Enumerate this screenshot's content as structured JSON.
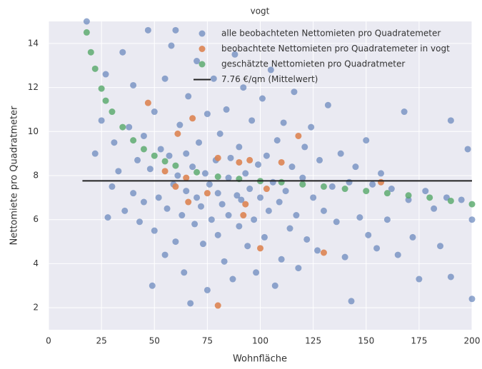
{
  "chart_data": {
    "type": "scatter",
    "title": "vogt",
    "xlabel": "Wohnfläche",
    "ylabel": "Nettomiete pro Quadratmeter",
    "xlim": [
      0,
      200
    ],
    "ylim": [
      1,
      15
    ],
    "xticks": [
      0,
      25,
      50,
      75,
      100,
      125,
      150,
      175,
      200
    ],
    "yticks": [
      2,
      4,
      6,
      8,
      10,
      12,
      14
    ],
    "grid": true,
    "legend": "upper right",
    "series": [
      {
        "name": "alle beobachteten Nettomieten pro Quadratemeter",
        "kind": "scatter",
        "color": "#4c72b0",
        "opacity": 0.6,
        "x": [
          18,
          22,
          25,
          27,
          28,
          30,
          31,
          33,
          35,
          36,
          38,
          40,
          40,
          42,
          43,
          45,
          45,
          47,
          48,
          49,
          50,
          50,
          52,
          53,
          55,
          55,
          56,
          57,
          58,
          59,
          60,
          60,
          61,
          62,
          63,
          64,
          65,
          65,
          66,
          67,
          68,
          69,
          70,
          70,
          71,
          72,
          73,
          74,
          75,
          75,
          76,
          77,
          78,
          79,
          80,
          80,
          81,
          82,
          83,
          84,
          85,
          85,
          86,
          87,
          88,
          89,
          90,
          90,
          91,
          92,
          93,
          94,
          95,
          96,
          97,
          98,
          99,
          100,
          101,
          102,
          103,
          104,
          105,
          106,
          107,
          108,
          109,
          110,
          111,
          112,
          114,
          115,
          116,
          117,
          118,
          120,
          121,
          122,
          124,
          125,
          127,
          128,
          130,
          132,
          134,
          136,
          138,
          140,
          142,
          143,
          145,
          147,
          150,
          151,
          153,
          155,
          157,
          160,
          162,
          165,
          168,
          170,
          172,
          175,
          178,
          182,
          185,
          188,
          190,
          190,
          195,
          198,
          200,
          200
        ],
        "y": [
          15,
          9,
          10.5,
          12.6,
          6.1,
          7.5,
          9.5,
          8.2,
          13.6,
          6.4,
          10.2,
          7.2,
          12.1,
          8.7,
          5.9,
          9.8,
          6.8,
          14.6,
          8.3,
          3.0,
          5.5,
          10.9,
          7.0,
          9.2,
          4.4,
          12.4,
          6.5,
          8.9,
          13.9,
          7.6,
          5.0,
          14.6,
          8.0,
          10.3,
          6.2,
          3.6,
          9.0,
          7.3,
          11.6,
          2.2,
          8.4,
          5.8,
          7.0,
          13.2,
          9.5,
          6.6,
          4.9,
          8.1,
          2.8,
          10.8,
          7.6,
          6.0,
          12.4,
          8.7,
          5.3,
          7.2,
          9.9,
          6.7,
          4.1,
          11.0,
          7.9,
          6.2,
          8.8,
          3.3,
          13.5,
          7.1,
          5.7,
          9.3,
          6.9,
          12.0,
          8.1,
          4.8,
          7.4,
          10.5,
          6.0,
          3.6,
          8.5,
          7.0,
          11.5,
          5.2,
          8.9,
          6.4,
          12.8,
          7.7,
          3.0,
          9.6,
          6.8,
          4.2,
          10.4,
          7.3,
          5.6,
          8.4,
          11.8,
          6.2,
          3.8,
          7.9,
          9.3,
          5.1,
          10.2,
          7.0,
          4.6,
          8.7,
          6.4,
          11.2,
          7.5,
          5.9,
          9.0,
          4.3,
          7.7,
          2.3,
          8.4,
          6.1,
          9.6,
          5.3,
          7.6,
          4.7,
          8.1,
          6.0,
          7.4,
          4.4,
          10.9,
          6.9,
          5.2,
          3.3,
          7.3,
          6.5,
          4.8,
          7.0,
          10.5,
          3.4,
          6.9,
          9.2,
          6.0,
          2.4
        ]
      },
      {
        "name": "beobachtete Nettomieten pro Quadratemeter in vogt",
        "kind": "scatter",
        "color": "#dd8452",
        "opacity": 0.9,
        "x": [
          47,
          61,
          68,
          80,
          90,
          95,
          110,
          118,
          55,
          65,
          60,
          66,
          93,
          92,
          103,
          100,
          130,
          80,
          157,
          75
        ],
        "y": [
          11.3,
          9.9,
          10.6,
          8.8,
          8.6,
          8.7,
          8.6,
          9.8,
          8.2,
          7.9,
          7.5,
          6.8,
          6.7,
          6.2,
          7.4,
          4.7,
          4.5,
          2.1,
          7.7,
          7.2
        ]
      },
      {
        "name": "geschätzte Nettomieten pro Quadratmeter",
        "kind": "scatter",
        "color": "#55a868",
        "opacity": 0.8,
        "x": [
          18,
          20,
          22,
          25,
          27,
          30,
          35,
          40,
          45,
          50,
          55,
          60,
          70,
          80,
          90,
          100,
          110,
          120,
          130,
          140,
          150,
          160,
          170,
          180,
          190,
          200
        ],
        "y": [
          14.5,
          13.6,
          12.85,
          11.95,
          11.4,
          10.9,
          10.2,
          9.6,
          9.2,
          8.9,
          8.65,
          8.45,
          8.15,
          7.95,
          7.85,
          7.75,
          7.7,
          7.6,
          7.5,
          7.4,
          7.3,
          7.2,
          7.1,
          7.0,
          6.85,
          6.7
        ]
      },
      {
        "name": "7.76 €/qm (Mittelwert)",
        "kind": "line",
        "color": "#222222",
        "x": [
          16,
          200
        ],
        "y": [
          7.76,
          7.76
        ]
      }
    ]
  }
}
